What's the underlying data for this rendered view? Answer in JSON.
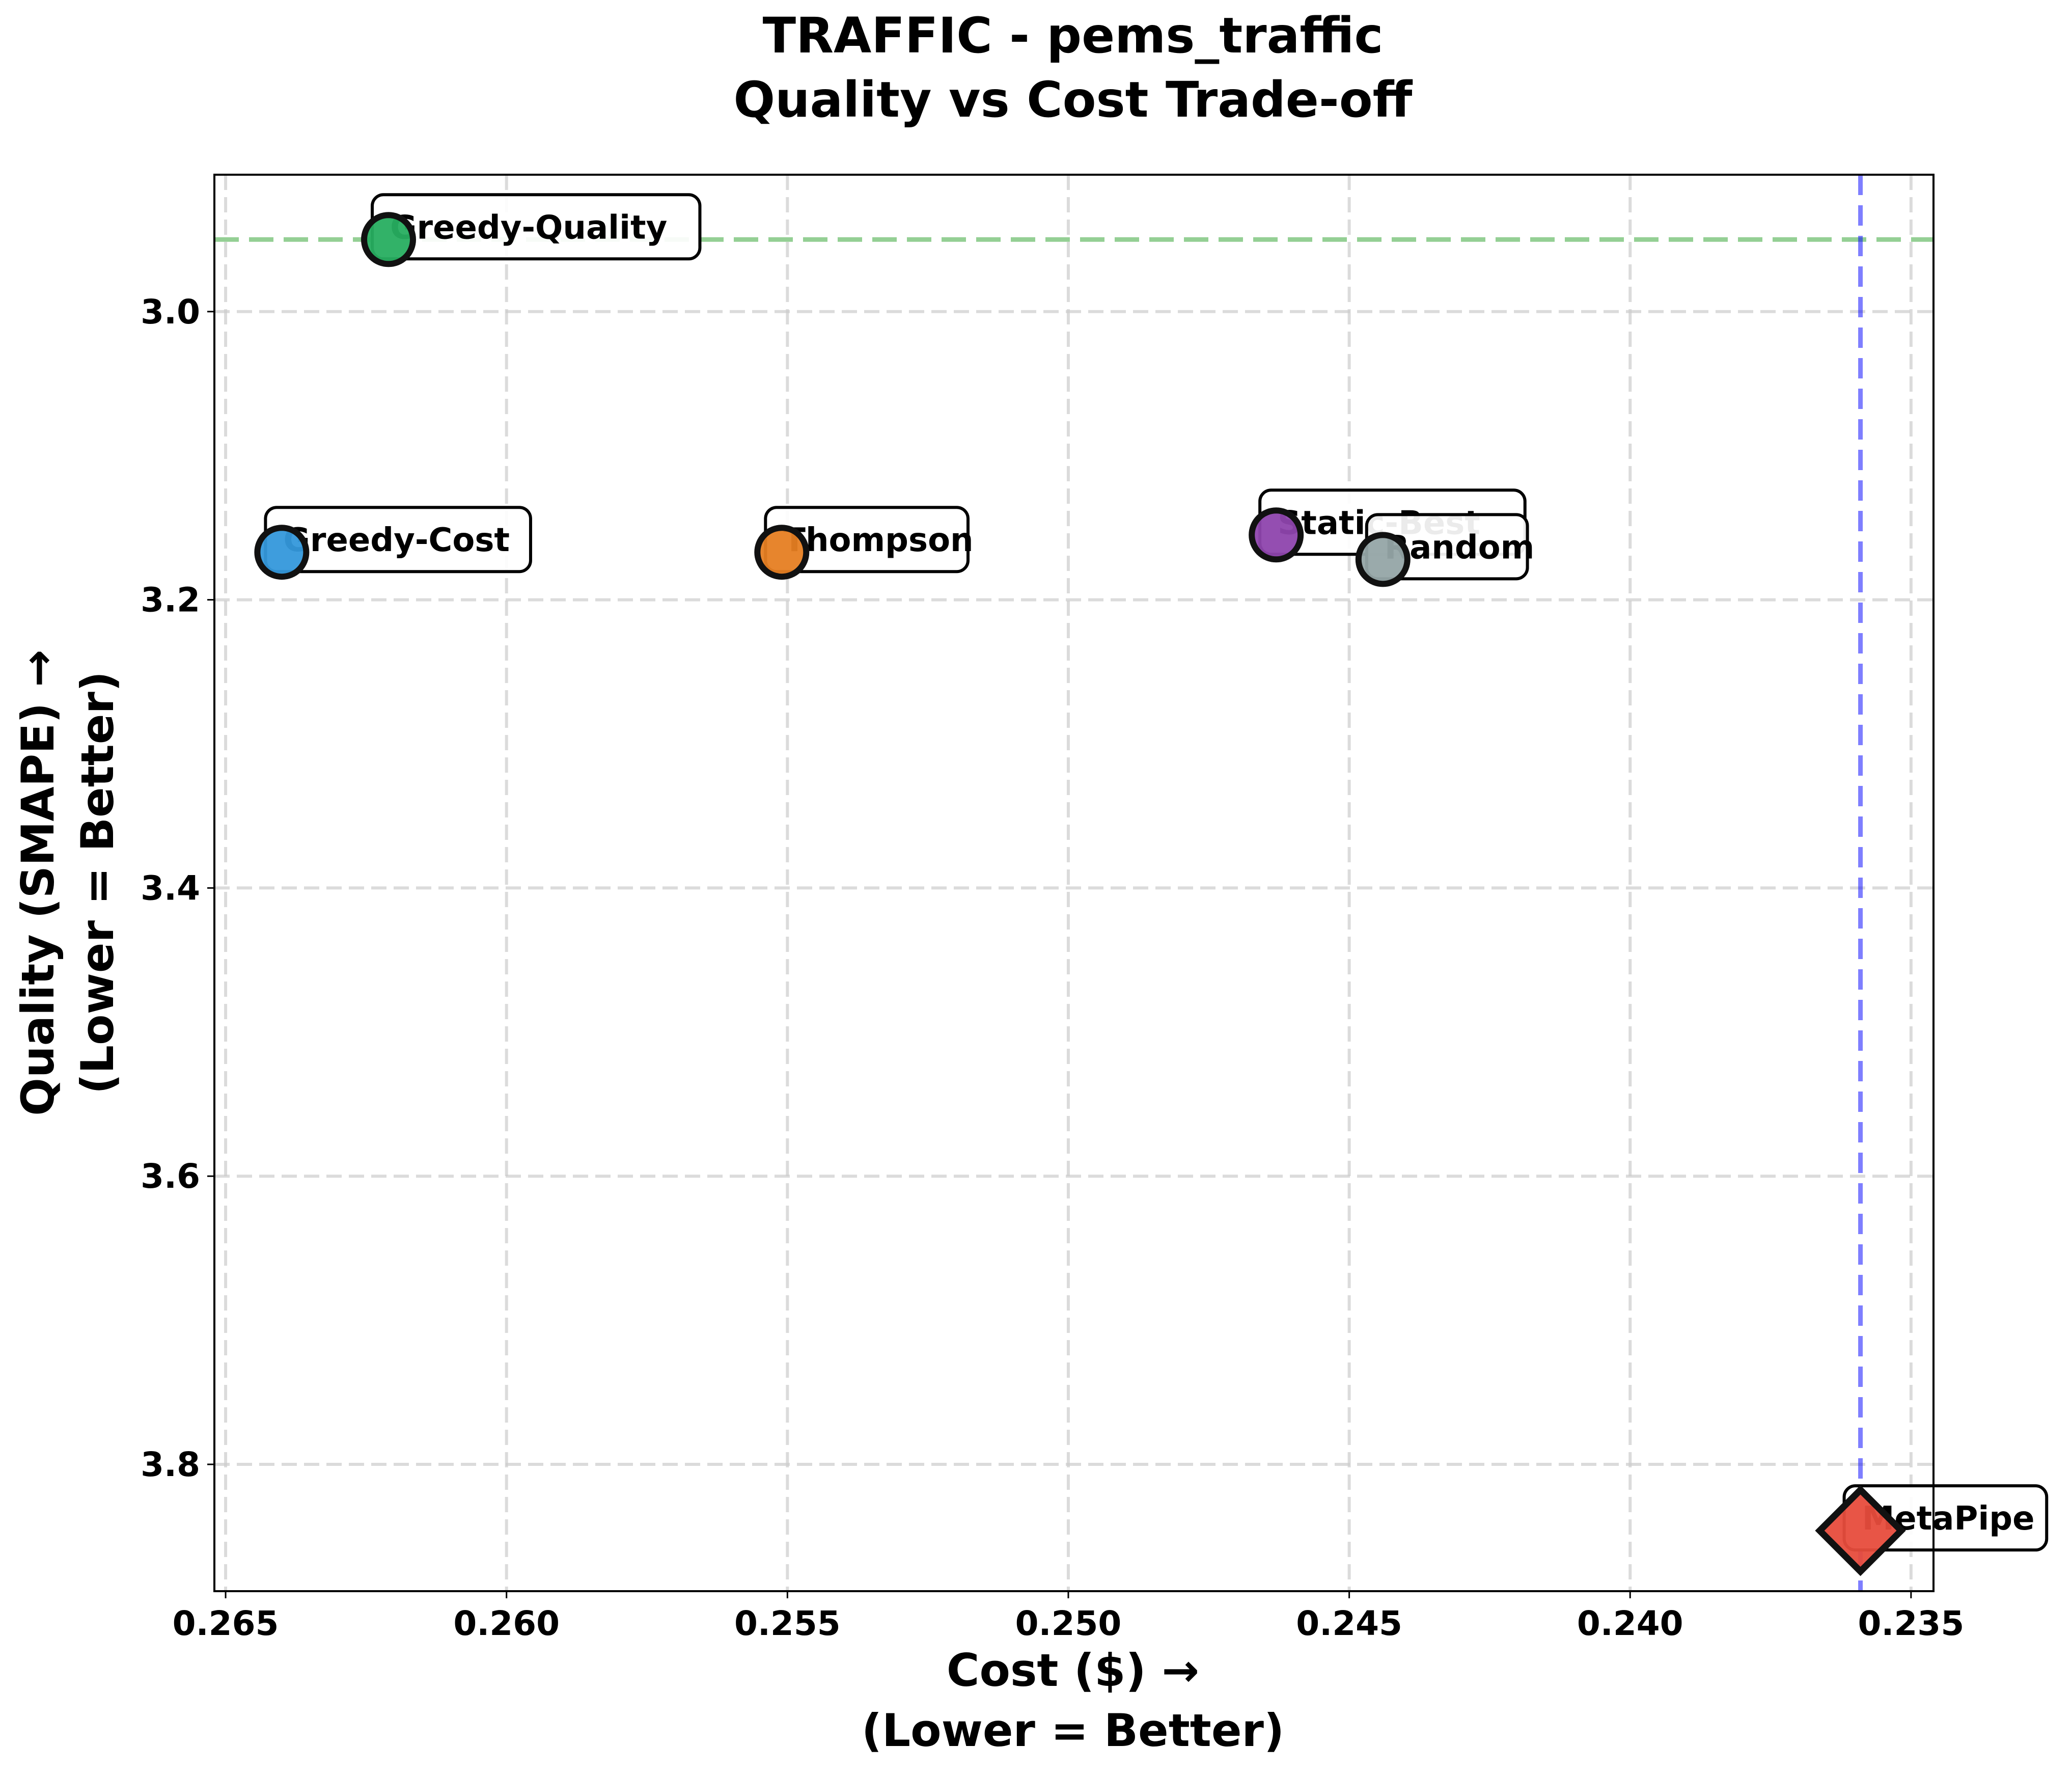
{
  "chart_data": {
    "type": "scatter",
    "title_lines": [
      "TRAFFIC - pems_traffic",
      "Quality vs Cost Trade-off"
    ],
    "xlabel_lines": [
      "Cost ($) →",
      "(Lower = Better)"
    ],
    "ylabel_lines": [
      "Quality (SMAPE) →",
      "(Lower = Better)"
    ],
    "xlim": [
      0.2652,
      0.2346
    ],
    "ylim": [
      3.888,
      2.905
    ],
    "x_inverted": true,
    "y_inverted": true,
    "xticks": [
      0.265,
      0.26,
      0.255,
      0.25,
      0.245,
      0.24,
      0.235
    ],
    "xtick_labels": [
      "0.265",
      "0.260",
      "0.255",
      "0.250",
      "0.245",
      "0.240",
      "0.235"
    ],
    "yticks": [
      3.0,
      3.2,
      3.4,
      3.6,
      3.8
    ],
    "ytick_labels": [
      "3.0",
      "3.2",
      "3.4",
      "3.6",
      "3.8"
    ],
    "grid": true,
    "reference_lines": [
      {
        "orientation": "horizontal",
        "value": 2.95,
        "color": "#2ca02c"
      },
      {
        "orientation": "vertical",
        "value": 0.2359,
        "color": "#0000ff"
      }
    ],
    "series": [
      {
        "label": "Greedy-Quality",
        "x": 0.2621,
        "y": 2.95,
        "color": "#27ae60",
        "marker": "circle"
      },
      {
        "label": "Greedy-Cost",
        "x": 0.264,
        "y": 3.167,
        "color": "#3498db",
        "marker": "circle"
      },
      {
        "label": "Thompson",
        "x": 0.2551,
        "y": 3.167,
        "color": "#e67e22",
        "marker": "circle"
      },
      {
        "label": "Static-Best",
        "x": 0.2463,
        "y": 3.155,
        "color": "#8e44ad",
        "marker": "circle"
      },
      {
        "label": "Random",
        "x": 0.2444,
        "y": 3.172,
        "color": "#95a5a6",
        "marker": "circle"
      },
      {
        "label": "MetaPipe",
        "x": 0.2359,
        "y": 3.846,
        "color": "#e74c3c",
        "marker": "diamond"
      }
    ]
  }
}
